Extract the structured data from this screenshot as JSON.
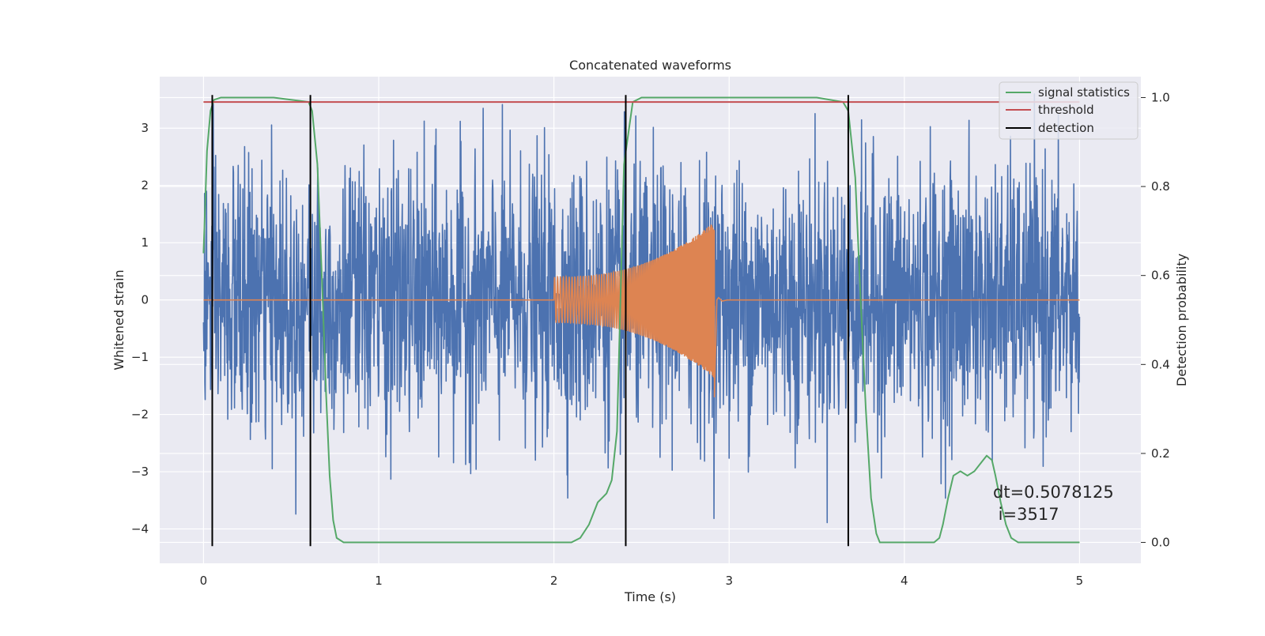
{
  "chart_data": {
    "type": "line",
    "title": "Concatenated waveforms",
    "xlabel": "Time (s)",
    "ylabel": "Whitened strain",
    "y2label": "Detection probability",
    "xlim": [
      -0.25,
      5.35
    ],
    "ylim": [
      -4.6,
      3.9
    ],
    "y2lim": [
      -0.047,
      1.047
    ],
    "x_ticks": [
      "0",
      "1",
      "2",
      "3",
      "4",
      "5"
    ],
    "y_ticks": [
      "3",
      "2",
      "1",
      "0",
      "−1",
      "−2",
      "−3",
      "−4"
    ],
    "y2_ticks": [
      "1.0",
      "0.8",
      "0.6",
      "0.4",
      "0.2",
      "0.0"
    ],
    "grid": true,
    "legend_position": "top-right",
    "annotation_lines": [
      "dt=0.5078125",
      " i=3517"
    ],
    "series": [
      {
        "name": "",
        "kind": "noise",
        "color": "#4c72b0",
        "x_range": [
          0,
          5
        ],
        "approx_std": 1.0,
        "approx_min": -4.3,
        "approx_max": 3.6
      },
      {
        "name": "",
        "kind": "chirp",
        "color": "#dd8452",
        "x_range": [
          0,
          5
        ],
        "chirp_start": 2.0,
        "chirp_end": 2.93,
        "amplitude_start": 0.4,
        "peak_amplitude": 1.4,
        "peak_min": -1.7
      },
      {
        "name": "signal statistics",
        "axis": "right",
        "color": "#55a868",
        "x": [
          0.0,
          0.02,
          0.04,
          0.06,
          0.1,
          0.2,
          0.4,
          0.6,
          0.62,
          0.65,
          0.68,
          0.7,
          0.72,
          0.74,
          0.76,
          0.8,
          1.0,
          1.5,
          2.0,
          2.1,
          2.15,
          2.2,
          2.25,
          2.3,
          2.33,
          2.36,
          2.4,
          2.45,
          2.5,
          3.0,
          3.5,
          3.65,
          3.68,
          3.72,
          3.75,
          3.78,
          3.81,
          3.84,
          3.86,
          3.9,
          4.0,
          4.17,
          4.2,
          4.22,
          4.25,
          4.28,
          4.32,
          4.36,
          4.4,
          4.44,
          4.47,
          4.5,
          4.52,
          4.55,
          4.58,
          4.61,
          4.65,
          4.7,
          5.0
        ],
        "y": [
          0.65,
          0.88,
          0.97,
          0.995,
          1.0,
          1.0,
          1.0,
          0.99,
          0.97,
          0.85,
          0.55,
          0.33,
          0.15,
          0.05,
          0.01,
          0.0,
          0.0,
          0.0,
          0.0,
          0.0,
          0.01,
          0.04,
          0.09,
          0.11,
          0.14,
          0.25,
          0.85,
          0.99,
          1.0,
          1.0,
          1.0,
          0.99,
          0.97,
          0.82,
          0.55,
          0.3,
          0.1,
          0.02,
          0.0,
          0.0,
          0.0,
          0.0,
          0.01,
          0.04,
          0.1,
          0.15,
          0.16,
          0.15,
          0.16,
          0.18,
          0.195,
          0.185,
          0.15,
          0.09,
          0.04,
          0.01,
          0.0,
          0.0,
          0.0
        ]
      },
      {
        "name": "threshold",
        "axis": "right",
        "color": "#c44e52",
        "x": [
          0,
          5
        ],
        "y": [
          0.99,
          0.99
        ]
      },
      {
        "name": "detection",
        "axis": "left",
        "color": "#000000",
        "x": [
          0.05,
          0.61,
          2.41,
          3.68
        ],
        "y_from": -4.3,
        "y_to": 3.58
      }
    ]
  }
}
